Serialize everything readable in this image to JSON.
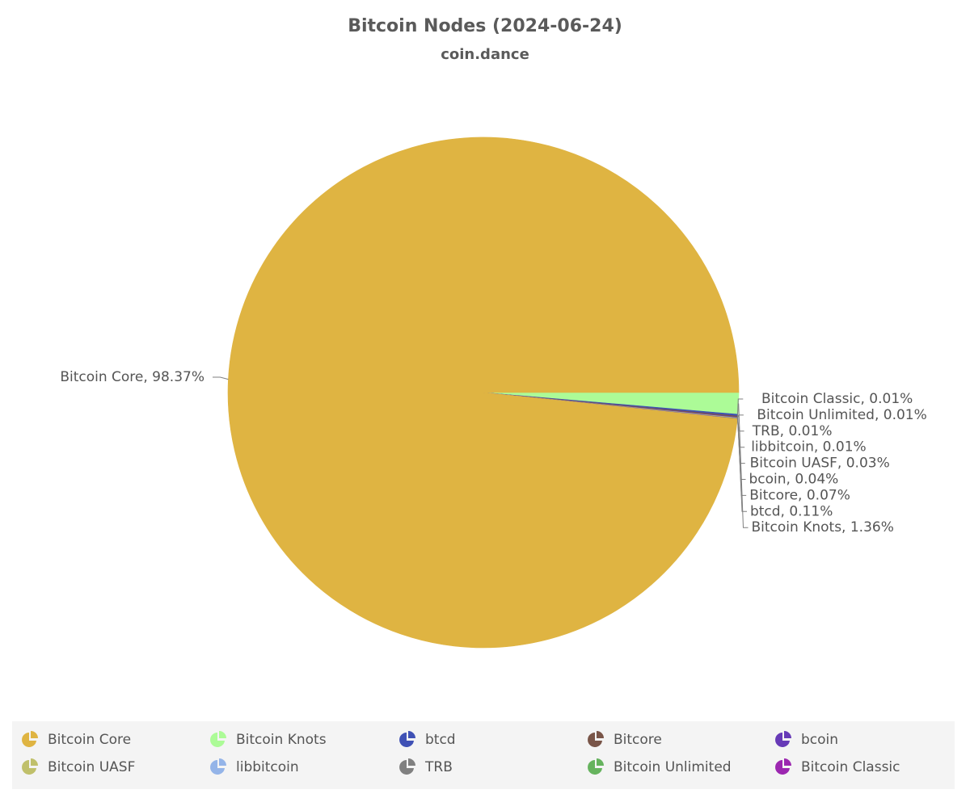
{
  "chart_data": {
    "type": "pie",
    "title": "Bitcoin Nodes (2024-06-24)",
    "subtitle": "coin.dance",
    "slices": [
      {
        "name": "Bitcoin Core",
        "value": 98.37,
        "color": "#dfb442",
        "label": "Bitcoin Core, 98.37%"
      },
      {
        "name": "Bitcoin Knots",
        "value": 1.36,
        "color": "#acfb97",
        "label": "Bitcoin Knots, 1.36%"
      },
      {
        "name": "btcd",
        "value": 0.11,
        "color": "#3f51b5",
        "label": "btcd, 0.11%"
      },
      {
        "name": "Bitcore",
        "value": 0.07,
        "color": "#795548",
        "label": "Bitcore, 0.07%"
      },
      {
        "name": "bcoin",
        "value": 0.04,
        "color": "#673ab7",
        "label": "bcoin, 0.04%"
      },
      {
        "name": "Bitcoin UASF",
        "value": 0.03,
        "color": "#c0c06b",
        "label": "Bitcoin UASF, 0.03%"
      },
      {
        "name": "libbitcoin",
        "value": 0.01,
        "color": "#94b4e8",
        "label": "libbitcoin, 0.01%"
      },
      {
        "name": "TRB",
        "value": 0.01,
        "color": "#808080",
        "label": "TRB, 0.01%"
      },
      {
        "name": "Bitcoin Unlimited",
        "value": 0.01,
        "color": "#66b35e",
        "label": "Bitcoin Unlimited, 0.01%"
      },
      {
        "name": "Bitcoin Classic",
        "value": 0.01,
        "color": "#9c27b0",
        "label": "Bitcoin Classic, 0.01%"
      }
    ],
    "legend": {
      "position": "bottom",
      "items": [
        "Bitcoin Core",
        "Bitcoin Knots",
        "btcd",
        "Bitcore",
        "bcoin",
        "Bitcoin UASF",
        "libbitcoin",
        "TRB",
        "Bitcoin Unlimited",
        "Bitcoin Classic"
      ]
    }
  }
}
